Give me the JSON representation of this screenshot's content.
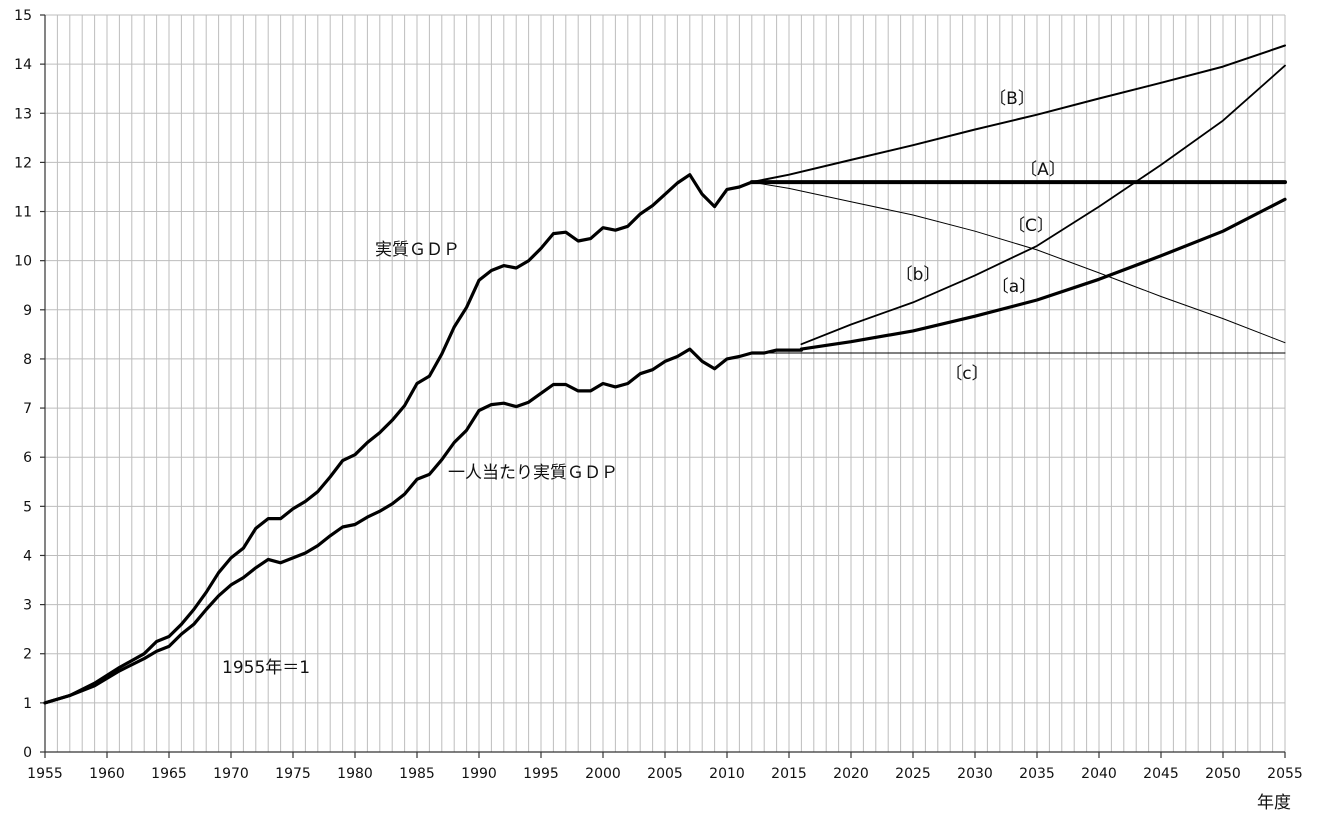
{
  "chart_data": {
    "type": "line",
    "title": "",
    "xlabel": "年度",
    "ylabel": "",
    "xlim": [
      1955,
      2055
    ],
    "ylim": [
      0,
      15
    ],
    "x_ticks": [
      1955,
      1960,
      1965,
      1970,
      1975,
      1980,
      1985,
      1990,
      1995,
      2000,
      2005,
      2010,
      2015,
      2020,
      2025,
      2030,
      2035,
      2040,
      2045,
      2050,
      2055
    ],
    "y_ticks": [
      0,
      1,
      2,
      3,
      4,
      5,
      6,
      7,
      8,
      9,
      10,
      11,
      12,
      13,
      14,
      15
    ],
    "grid": true,
    "legend": "none",
    "series": [
      {
        "name": "実質ＧＤＰ",
        "x": [
          1955,
          1957,
          1959,
          1961,
          1963,
          1964,
          1965,
          1966,
          1967,
          1968,
          1969,
          1970,
          1971,
          1972,
          1973,
          1974,
          1975,
          1976,
          1977,
          1978,
          1979,
          1980,
          1981,
          1982,
          1983,
          1984,
          1985,
          1986,
          1987,
          1988,
          1989,
          1990,
          1991,
          1992,
          1993,
          1994,
          1995,
          1996,
          1997,
          1998,
          1999,
          2000,
          2001,
          2002,
          2003,
          2004,
          2005,
          2006,
          2007,
          2008,
          2009,
          2010,
          2011,
          2012
        ],
        "y": [
          1.0,
          1.15,
          1.4,
          1.72,
          2.0,
          2.25,
          2.35,
          2.6,
          2.9,
          3.25,
          3.65,
          3.95,
          4.15,
          4.55,
          4.75,
          4.75,
          4.95,
          5.1,
          5.3,
          5.6,
          5.93,
          6.05,
          6.3,
          6.5,
          6.75,
          7.05,
          7.5,
          7.65,
          8.1,
          8.65,
          9.05,
          9.6,
          9.8,
          9.9,
          9.85,
          10.0,
          10.25,
          10.55,
          10.58,
          10.4,
          10.45,
          10.67,
          10.62,
          10.7,
          10.95,
          11.12,
          11.35,
          11.58,
          11.75,
          11.35,
          11.1,
          11.45,
          11.5,
          11.6
        ]
      },
      {
        "name": "一人当たり実質ＧＤＰ",
        "x": [
          1955,
          1957,
          1959,
          1961,
          1963,
          1964,
          1965,
          1966,
          1967,
          1968,
          1969,
          1970,
          1971,
          1972,
          1973,
          1974,
          1975,
          1976,
          1977,
          1978,
          1979,
          1980,
          1981,
          1982,
          1983,
          1984,
          1985,
          1986,
          1987,
          1988,
          1989,
          1990,
          1991,
          1992,
          1993,
          1994,
          1995,
          1996,
          1997,
          1998,
          1999,
          2000,
          2001,
          2002,
          2003,
          2004,
          2005,
          2006,
          2007,
          2008,
          2009,
          2010,
          2011,
          2012,
          2013,
          2014,
          2015,
          2016
        ],
        "y": [
          1.0,
          1.15,
          1.35,
          1.65,
          1.9,
          2.05,
          2.15,
          2.4,
          2.6,
          2.9,
          3.18,
          3.4,
          3.55,
          3.75,
          3.92,
          3.85,
          3.95,
          4.05,
          4.2,
          4.4,
          4.58,
          4.63,
          4.78,
          4.9,
          5.05,
          5.25,
          5.55,
          5.65,
          5.95,
          6.3,
          6.55,
          6.95,
          7.07,
          7.1,
          7.03,
          7.12,
          7.3,
          7.48,
          7.48,
          7.35,
          7.35,
          7.5,
          7.43,
          7.5,
          7.7,
          7.78,
          7.95,
          8.05,
          8.2,
          7.95,
          7.8,
          8.0,
          8.05,
          8.12,
          8.12,
          8.18,
          8.18,
          8.18
        ]
      },
      {
        "name": "〔A〕",
        "x": [
          2012,
          2055
        ],
        "y": [
          11.6,
          11.6
        ]
      },
      {
        "name": "〔B〕",
        "x": [
          2012,
          2015,
          2020,
          2025,
          2030,
          2035,
          2040,
          2045,
          2050,
          2055
        ],
        "y": [
          11.6,
          11.75,
          12.05,
          12.35,
          12.67,
          12.97,
          13.3,
          13.62,
          13.95,
          14.38
        ]
      },
      {
        "name": "〔C〕",
        "x": [
          2012,
          2015,
          2020,
          2025,
          2030,
          2035,
          2040,
          2045,
          2050,
          2055
        ],
        "y": [
          11.6,
          11.47,
          11.2,
          10.93,
          10.6,
          10.22,
          9.75,
          9.27,
          8.82,
          8.33
        ]
      },
      {
        "name": "〔a〕",
        "x": [
          2016,
          2020,
          2025,
          2030,
          2035,
          2040,
          2045,
          2050,
          2055
        ],
        "y": [
          8.2,
          8.35,
          8.57,
          8.87,
          9.2,
          9.62,
          10.1,
          10.6,
          11.25
        ]
      },
      {
        "name": "〔b〕",
        "x": [
          2016,
          2020,
          2025,
          2030,
          2035,
          2040,
          2045,
          2050,
          2055
        ],
        "y": [
          8.3,
          8.7,
          9.15,
          9.7,
          10.3,
          11.1,
          11.95,
          12.85,
          13.97
        ]
      },
      {
        "name": "〔c〕",
        "x": [
          2012,
          2055
        ],
        "y": [
          8.12,
          8.12
        ]
      }
    ],
    "annotations": [
      "1955年＝1"
    ]
  }
}
